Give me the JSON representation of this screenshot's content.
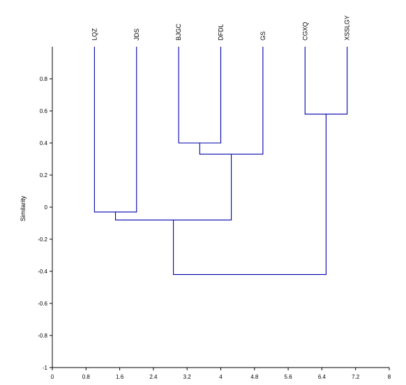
{
  "chart_data": {
    "type": "dendrogram",
    "ylabel": "Similarity",
    "xlabel": "",
    "title": "",
    "xlim": [
      0,
      8
    ],
    "ylim": [
      -1,
      1
    ],
    "x_ticks": [
      0,
      0.8,
      1.6,
      2.4,
      3.2,
      4,
      4.8,
      5.6,
      6.4,
      7.2,
      8
    ],
    "x_tick_labels": [
      "0",
      "0.8",
      "1.6",
      "2.4",
      "3.2",
      "4",
      "4.8",
      "5.6",
      "6.4",
      "7.2",
      "8"
    ],
    "y_ticks": [
      0.8,
      0.6,
      0.4,
      0.2,
      0,
      -0.2,
      -0.4,
      -0.6,
      -0.8,
      -1
    ],
    "y_tick_labels": [
      "0.8",
      "0.6",
      "0.4",
      "0.2",
      "0",
      "-0.2",
      "-0.4",
      "-0.6",
      "-0.8",
      "-1"
    ],
    "leaves": [
      {
        "label": "LQZ",
        "x": 1
      },
      {
        "label": "JDS",
        "x": 2
      },
      {
        "label": "BJGC",
        "x": 3
      },
      {
        "label": "DFDL",
        "x": 4
      },
      {
        "label": "GS",
        "x": 5
      },
      {
        "label": "CGXQ",
        "x": 6
      },
      {
        "label": "XSSLGY",
        "x": 7
      }
    ],
    "merges": [
      {
        "left": "LQZ",
        "right": "JDS",
        "similarity": -0.03
      },
      {
        "left": "BJGC",
        "right": "DFDL",
        "similarity": 0.4
      },
      {
        "left": "BJGC+DFDL",
        "right": "GS",
        "similarity": 0.33
      },
      {
        "left": "LQZ+JDS",
        "right": "BJGC+DFDL+GS",
        "similarity": -0.08
      },
      {
        "left": "CGXQ",
        "right": "XSSLGY",
        "similarity": 0.58
      },
      {
        "left": "LQZ+JDS+BJGC+DFDL+GS",
        "right": "CGXQ+XSSLGY",
        "similarity": -0.42
      }
    ],
    "line_color": "#0000aa",
    "grid": false
  }
}
